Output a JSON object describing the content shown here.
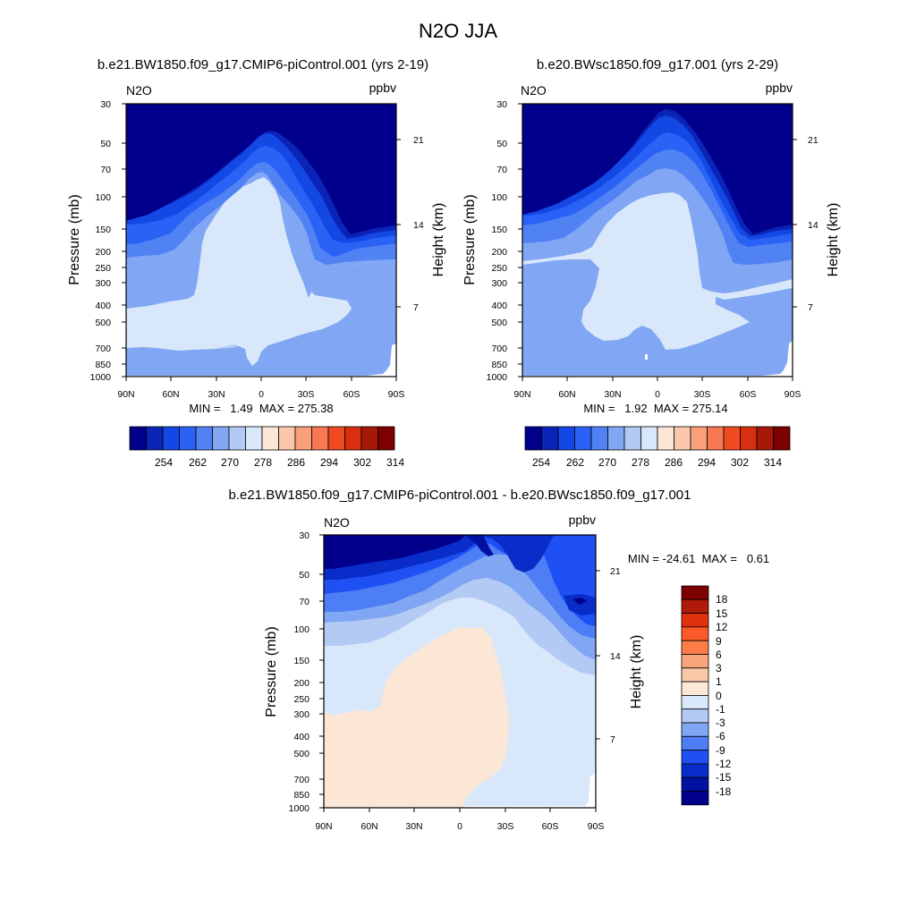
{
  "chart_data": [
    {
      "type": "heatmap",
      "id": "panel_a",
      "title": "b.e21.BW1850.f09_g17.CMIP6-piControl.001 (yrs 2-19)",
      "variable": "N2O",
      "units": "ppbv",
      "xlabel": "",
      "ylabel": "Pressure (mb)",
      "y2label": "Height (km)",
      "x_ticks": [
        "90N",
        "60N",
        "30N",
        "0",
        "30S",
        "60S",
        "90S"
      ],
      "y_ticks": [
        "30",
        "50",
        "70",
        "100",
        "150",
        "200",
        "250",
        "300",
        "400",
        "500",
        "700",
        "850",
        "1000"
      ],
      "y2_ticks": [
        "21",
        "14",
        "7"
      ],
      "stats": "MIN =   1.49  MAX = 275.38",
      "min": 1.49,
      "max": 275.38,
      "colorbar_labels": [
        "254",
        "262",
        "270",
        "278",
        "286",
        "294",
        "302",
        "314"
      ],
      "colorbar_colors": [
        "#00008C",
        "#0A24B8",
        "#1448E4",
        "#2A62F6",
        "#5082F4",
        "#80A6F4",
        "#B2CAF4",
        "#D8E8FA",
        "#FCE6D6",
        "#FBC8AC",
        "#F9A07A",
        "#F77852",
        "#F04A22",
        "#D6300E",
        "#A81808",
        "#7C0000"
      ]
    },
    {
      "type": "heatmap",
      "id": "panel_b",
      "title": "b.e20.BWsc1850.f09_g17.001 (yrs 2-29)",
      "variable": "N2O",
      "units": "ppbv",
      "xlabel": "",
      "ylabel": "Pressure (mb)",
      "y2label": "Height (km)",
      "x_ticks": [
        "90N",
        "60N",
        "30N",
        "0",
        "30S",
        "60S",
        "90S"
      ],
      "y_ticks": [
        "30",
        "50",
        "70",
        "100",
        "150",
        "200",
        "250",
        "300",
        "400",
        "500",
        "700",
        "850",
        "1000"
      ],
      "y2_ticks": [
        "21",
        "14",
        "7"
      ],
      "stats": "MIN =   1.92  MAX = 275.14",
      "min": 1.92,
      "max": 275.14,
      "colorbar_labels": [
        "254",
        "262",
        "270",
        "278",
        "286",
        "294",
        "302",
        "314"
      ],
      "colorbar_colors": [
        "#00008C",
        "#0A24B8",
        "#1448E4",
        "#2A62F6",
        "#5082F4",
        "#80A6F4",
        "#B2CAF4",
        "#D8E8FA",
        "#FCE6D6",
        "#FBC8AC",
        "#F9A07A",
        "#F77852",
        "#F04A22",
        "#D6300E",
        "#A81808",
        "#7C0000"
      ]
    },
    {
      "type": "heatmap",
      "id": "panel_diff",
      "title": "b.e21.BW1850.f09_g17.CMIP6-piControl.001 - b.e20.BWsc1850.f09_g17.001",
      "variable": "N2O",
      "units": "ppbv",
      "xlabel": "",
      "ylabel": "Pressure (mb)",
      "y2label": "Height (km)",
      "x_ticks": [
        "90N",
        "60N",
        "30N",
        "0",
        "30S",
        "60S",
        "90S"
      ],
      "y_ticks": [
        "30",
        "50",
        "70",
        "100",
        "150",
        "200",
        "250",
        "300",
        "400",
        "500",
        "700",
        "850",
        "1000"
      ],
      "y2_ticks": [
        "21",
        "14",
        "7"
      ],
      "stats": "MIN = -24.61  MAX =   0.61",
      "min": -24.61,
      "max": 0.61,
      "colorbar_labels": [
        "18",
        "15",
        "12",
        "9",
        "6",
        "3",
        "1",
        "0",
        "-1",
        "-3",
        "-6",
        "-9",
        "-12",
        "-15",
        "-18"
      ],
      "colorbar_colors": [
        "#7C0000",
        "#B01A0A",
        "#E0300C",
        "#FC5A28",
        "#FB7E48",
        "#F9A47C",
        "#FAC8A8",
        "#FDE8D6",
        "#D8E8FA",
        "#B2CAF4",
        "#80A6F4",
        "#4E7EF6",
        "#1E50F4",
        "#0A2CC8",
        "#0010A0",
        "#00008C"
      ]
    }
  ],
  "figure": {
    "title": "N2O JJA"
  }
}
